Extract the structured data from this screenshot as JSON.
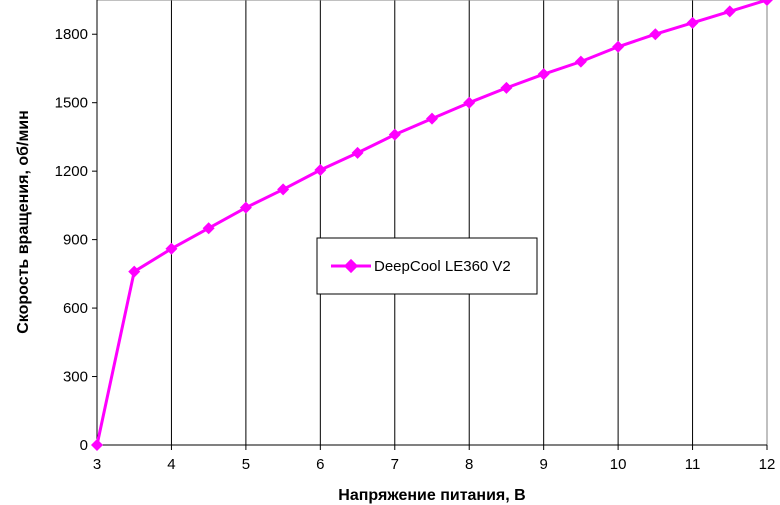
{
  "chart_data": {
    "type": "line",
    "title": "",
    "xlabel": "Напряжение питания, В",
    "ylabel": "Скорость вращения, об/мин",
    "xlim": [
      3,
      12
    ],
    "ylim": [
      0,
      1950
    ],
    "xticks": [
      3,
      4,
      5,
      6,
      7,
      8,
      9,
      10,
      11,
      12
    ],
    "yticks": [
      0,
      300,
      600,
      900,
      1200,
      1500,
      1800
    ],
    "grid": "vertical",
    "legend_position": "center",
    "series": [
      {
        "name": "DeepCool LE360 V2",
        "color": "#ff00ff",
        "marker": "diamond",
        "x": [
          3,
          3.5,
          4,
          4.5,
          5,
          5.5,
          6,
          6.5,
          7,
          7.5,
          8,
          8.5,
          9,
          9.5,
          10,
          10.5,
          11,
          11.5,
          12
        ],
        "y": [
          0,
          760,
          860,
          950,
          1040,
          1120,
          1205,
          1280,
          1360,
          1430,
          1500,
          1565,
          1625,
          1680,
          1745,
          1800,
          1850,
          1900,
          1950
        ]
      }
    ]
  }
}
